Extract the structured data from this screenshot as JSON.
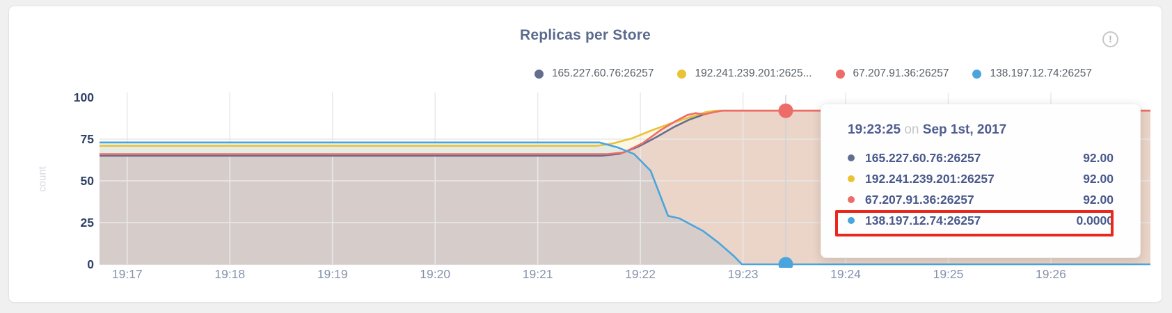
{
  "header": {
    "title": "Replicas per Store",
    "info_icon": {
      "name": "alert-circle-icon",
      "glyph": "!"
    }
  },
  "legend": {
    "items": [
      {
        "label": "165.227.60.76:26257",
        "color": "#646f8d"
      },
      {
        "label": "192.241.239.201:2625...",
        "color": "#eac235"
      },
      {
        "label": "67.207.91.36:26257",
        "color": "#ee6c67"
      },
      {
        "label": "138.197.12.74:26257",
        "color": "#4aa5dd"
      }
    ]
  },
  "chart_data": {
    "type": "area",
    "title": "Replicas per Store",
    "xlabel": "",
    "ylabel": "count",
    "ylim": [
      0,
      100
    ],
    "y_ticks": [
      0,
      25,
      50,
      75,
      100
    ],
    "x_domain": [
      16.73,
      26.97
    ],
    "x_ticks": [
      {
        "t": 17,
        "label": "19:17"
      },
      {
        "t": 18,
        "label": "19:18"
      },
      {
        "t": 19,
        "label": "19:19"
      },
      {
        "t": 20,
        "label": "19:20"
      },
      {
        "t": 21,
        "label": "19:21"
      },
      {
        "t": 22,
        "label": "19:22"
      },
      {
        "t": 23,
        "label": "19:23"
      },
      {
        "t": 24,
        "label": "19:24"
      },
      {
        "t": 25,
        "label": "19:25"
      },
      {
        "t": 26,
        "label": "19:26"
      }
    ],
    "grid": true,
    "legend_position": "top-right",
    "series": [
      {
        "name": "165.227.60.76:26257",
        "color": "#646f8d",
        "fill_opacity": 0.13,
        "points": [
          [
            16.73,
            65
          ],
          [
            21.62,
            65
          ],
          [
            21.8,
            66.2
          ],
          [
            21.98,
            70.5
          ],
          [
            22.15,
            76
          ],
          [
            22.32,
            82
          ],
          [
            22.47,
            86.5
          ],
          [
            22.62,
            89.8
          ],
          [
            22.76,
            92
          ],
          [
            26.97,
            92
          ]
        ]
      },
      {
        "name": "192.241.239.201:26257",
        "color": "#eac235",
        "fill_opacity": 0.13,
        "points": [
          [
            16.73,
            71
          ],
          [
            21.58,
            71
          ],
          [
            21.74,
            72.5
          ],
          [
            21.92,
            75.5
          ],
          [
            22.1,
            80
          ],
          [
            22.3,
            84.5
          ],
          [
            22.5,
            88.5
          ],
          [
            22.64,
            91.2
          ],
          [
            22.73,
            92
          ],
          [
            26.97,
            92
          ]
        ]
      },
      {
        "name": "67.207.91.36:26257",
        "color": "#ee6c67",
        "fill_opacity": 0.14,
        "points": [
          [
            16.73,
            66
          ],
          [
            21.68,
            66
          ],
          [
            21.84,
            67
          ],
          [
            22.02,
            72.5
          ],
          [
            22.2,
            80.5
          ],
          [
            22.35,
            86
          ],
          [
            22.46,
            89.5
          ],
          [
            22.54,
            90.6
          ],
          [
            22.62,
            89.8
          ],
          [
            22.72,
            91.2
          ],
          [
            22.8,
            92
          ],
          [
            26.97,
            92
          ]
        ]
      },
      {
        "name": "138.197.12.74:26257",
        "color": "#4aa5dd",
        "fill_opacity": 0.13,
        "points": [
          [
            16.73,
            73
          ],
          [
            21.6,
            73
          ],
          [
            21.78,
            70
          ],
          [
            21.94,
            66
          ],
          [
            22.1,
            56
          ],
          [
            22.27,
            29
          ],
          [
            22.38,
            27.5
          ],
          [
            22.61,
            20
          ],
          [
            22.76,
            13
          ],
          [
            22.91,
            5
          ],
          [
            22.99,
            0
          ],
          [
            26.97,
            0
          ]
        ]
      }
    ],
    "hover": {
      "t": 23.4167,
      "points": [
        {
          "series": "67.207.91.36:26257",
          "v": 92,
          "color": "#ee6c67"
        },
        {
          "series": "138.197.12.74:26257",
          "v": 0,
          "color": "#4aa5dd"
        }
      ]
    }
  },
  "tooltip": {
    "time": "19:23:25",
    "conj": "on",
    "date": "Sep 1st, 2017",
    "rows": [
      {
        "label": "165.227.60.76:26257",
        "value": "92.00",
        "color": "#646f8d",
        "highlighted": false
      },
      {
        "label": "192.241.239.201:26257",
        "value": "92.00",
        "color": "#eac235",
        "highlighted": false
      },
      {
        "label": "67.207.91.36:26257",
        "value": "92.00",
        "color": "#ee6c67",
        "highlighted": false
      },
      {
        "label": "138.197.12.74:26257",
        "value": "0.0000",
        "color": "#4aa5dd",
        "highlighted": true
      }
    ],
    "highlight_color": "#e8281d"
  }
}
